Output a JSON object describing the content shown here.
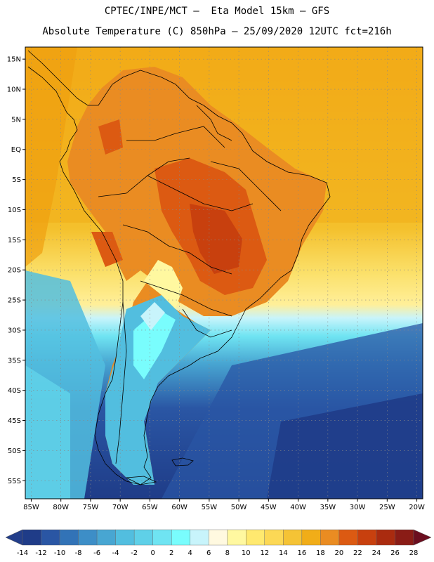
{
  "header": {
    "title_line1": "CPTEC/INPE/MCT –  Eta Model 15km – GFS",
    "title_line2": "Absolute Temperature (C) 850hPa – 25/09/2020 12UTC fct=216h"
  },
  "map": {
    "lon_range": [
      -86,
      -19
    ],
    "lat_range": [
      -58,
      17
    ],
    "lat_ticks": [
      {
        "lat": 15,
        "label": "15N"
      },
      {
        "lat": 10,
        "label": "10N"
      },
      {
        "lat": 5,
        "label": "5N"
      },
      {
        "lat": 0,
        "label": "EQ"
      },
      {
        "lat": -5,
        "label": "5S"
      },
      {
        "lat": -10,
        "label": "10S"
      },
      {
        "lat": -15,
        "label": "15S"
      },
      {
        "lat": -20,
        "label": "20S"
      },
      {
        "lat": -25,
        "label": "25S"
      },
      {
        "lat": -30,
        "label": "30S"
      },
      {
        "lat": -35,
        "label": "35S"
      },
      {
        "lat": -40,
        "label": "40S"
      },
      {
        "lat": -45,
        "label": "45S"
      },
      {
        "lat": -50,
        "label": "50S"
      },
      {
        "lat": -55,
        "label": "55S"
      }
    ],
    "lon_ticks": [
      {
        "lon": -85,
        "label": "85W"
      },
      {
        "lon": -80,
        "label": "80W"
      },
      {
        "lon": -75,
        "label": "75W"
      },
      {
        "lon": -70,
        "label": "70W"
      },
      {
        "lon": -65,
        "label": "65W"
      },
      {
        "lon": -60,
        "label": "60W"
      },
      {
        "lon": -55,
        "label": "55W"
      },
      {
        "lon": -50,
        "label": "50W"
      },
      {
        "lon": -45,
        "label": "45W"
      },
      {
        "lon": -40,
        "label": "40W"
      },
      {
        "lon": -35,
        "label": "35W"
      },
      {
        "lon": -30,
        "label": "30W"
      },
      {
        "lon": -25,
        "label": "25W"
      },
      {
        "lon": -20,
        "label": "20W"
      }
    ]
  },
  "colorbar": {
    "labels": [
      "-14",
      "-12",
      "-10",
      "-8",
      "-6",
      "-4",
      "-2",
      "0",
      "2",
      "4",
      "6",
      "8",
      "10",
      "12",
      "14",
      "16",
      "18",
      "20",
      "22",
      "24",
      "26",
      "28"
    ],
    "under_color": "#233e8a",
    "over_color": "#6b0e1f",
    "colors": [
      "#1f3c88",
      "#2a56a4",
      "#3273b7",
      "#3d8ec7",
      "#48a6d2",
      "#52bedf",
      "#5fd0e8",
      "#6fe4f2",
      "#79fdfd",
      "#c8f4fb",
      "#fff9e0",
      "#fff8a0",
      "#ffe96f",
      "#fcd855",
      "#f5c335",
      "#f1ad18",
      "#ea8c22",
      "#dc5a12",
      "#c8400e",
      "#aa2b0f",
      "#8a1c16"
    ]
  },
  "legend_colors": {
    "ocean_warm": "#f4b820",
    "ocean_cold": "#1f3c88",
    "land_hot": "#c8400e"
  }
}
